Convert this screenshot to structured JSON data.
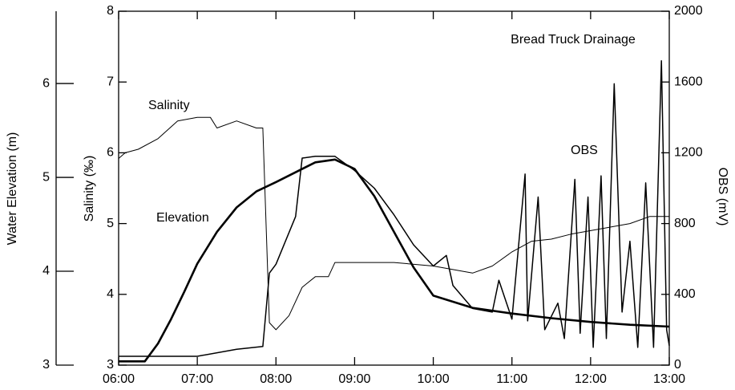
{
  "chart_data": {
    "type": "line",
    "title": "Bread Truck Drainage",
    "x_label": null,
    "ylabel_elevation": "Water Elevation (m)",
    "ylabel": "Salinity (‰)",
    "y2label": "OBS (mV)",
    "xlim": [
      360,
      780
    ],
    "xticks": [
      {
        "value": 360,
        "label": "06:00"
      },
      {
        "value": 420,
        "label": "07:00"
      },
      {
        "value": 480,
        "label": "08:00"
      },
      {
        "value": 540,
        "label": "09:00"
      },
      {
        "value": 600,
        "label": "10:00"
      },
      {
        "value": 660,
        "label": "11:00"
      },
      {
        "value": 720,
        "label": "12:00"
      },
      {
        "value": 780,
        "label": "13:00"
      }
    ],
    "ylim": [
      3,
      8
    ],
    "yticks": [
      3,
      4,
      5,
      6,
      7,
      8
    ],
    "y2lim": [
      0,
      2000
    ],
    "y2ticks": [
      0,
      400,
      800,
      1200,
      1600,
      2000
    ],
    "y3lim": [
      3,
      6.77
    ],
    "y3ticks": [
      3,
      4,
      5,
      6
    ],
    "series": [
      {
        "name": "Elevation",
        "color": "#000000",
        "axis": "y3",
        "width": 2.6,
        "x": [
          360,
          380,
          390,
          400,
          410,
          420,
          435,
          450,
          465,
          480,
          510,
          525,
          540,
          555,
          570,
          585,
          600,
          630,
          660,
          690,
          720,
          750,
          780
        ],
        "values": [
          3.04,
          3.04,
          3.23,
          3.49,
          3.78,
          4.08,
          4.42,
          4.68,
          4.85,
          4.95,
          5.16,
          5.19,
          5.09,
          4.8,
          4.42,
          4.04,
          3.74,
          3.61,
          3.55,
          3.5,
          3.46,
          3.43,
          3.41
        ]
      },
      {
        "name": "Salinity",
        "color": "#000000",
        "axis": "y",
        "width": 1,
        "x": [
          360,
          365,
          375,
          390,
          405,
          420,
          430,
          435,
          450,
          465,
          470,
          475,
          480,
          490,
          500,
          510,
          520,
          525,
          540,
          570,
          600,
          630,
          645,
          660,
          675,
          690,
          705,
          720,
          750,
          765,
          780
        ],
        "values": [
          5.92,
          6.0,
          6.05,
          6.2,
          6.45,
          6.5,
          6.5,
          6.35,
          6.45,
          6.35,
          6.35,
          3.6,
          3.5,
          3.7,
          4.1,
          4.25,
          4.25,
          4.45,
          4.45,
          4.45,
          4.4,
          4.3,
          4.4,
          4.6,
          4.75,
          4.78,
          4.85,
          4.9,
          5.0,
          5.1,
          5.1
        ]
      },
      {
        "name": "OBS",
        "color": "#000000",
        "axis": "y2",
        "width": 1.5,
        "x": [
          360,
          420,
          450,
          470,
          475,
          480,
          495,
          500,
          510,
          525,
          540,
          555,
          570,
          585,
          600,
          610,
          615,
          630,
          645,
          650,
          660,
          670,
          672,
          680,
          685,
          695,
          700,
          708,
          712,
          718,
          722,
          728,
          732,
          738,
          744,
          750,
          756,
          762,
          768,
          774,
          778,
          780
        ],
        "values": [
          50,
          50,
          90,
          105,
          520,
          570,
          840,
          1170,
          1180,
          1180,
          1100,
          1000,
          850,
          680,
          560,
          620,
          450,
          320,
          300,
          480,
          260,
          1080,
          250,
          950,
          200,
          350,
          150,
          1050,
          180,
          950,
          100,
          1070,
          150,
          1590,
          300,
          700,
          100,
          1030,
          100,
          1720,
          200,
          110
        ]
      }
    ]
  }
}
